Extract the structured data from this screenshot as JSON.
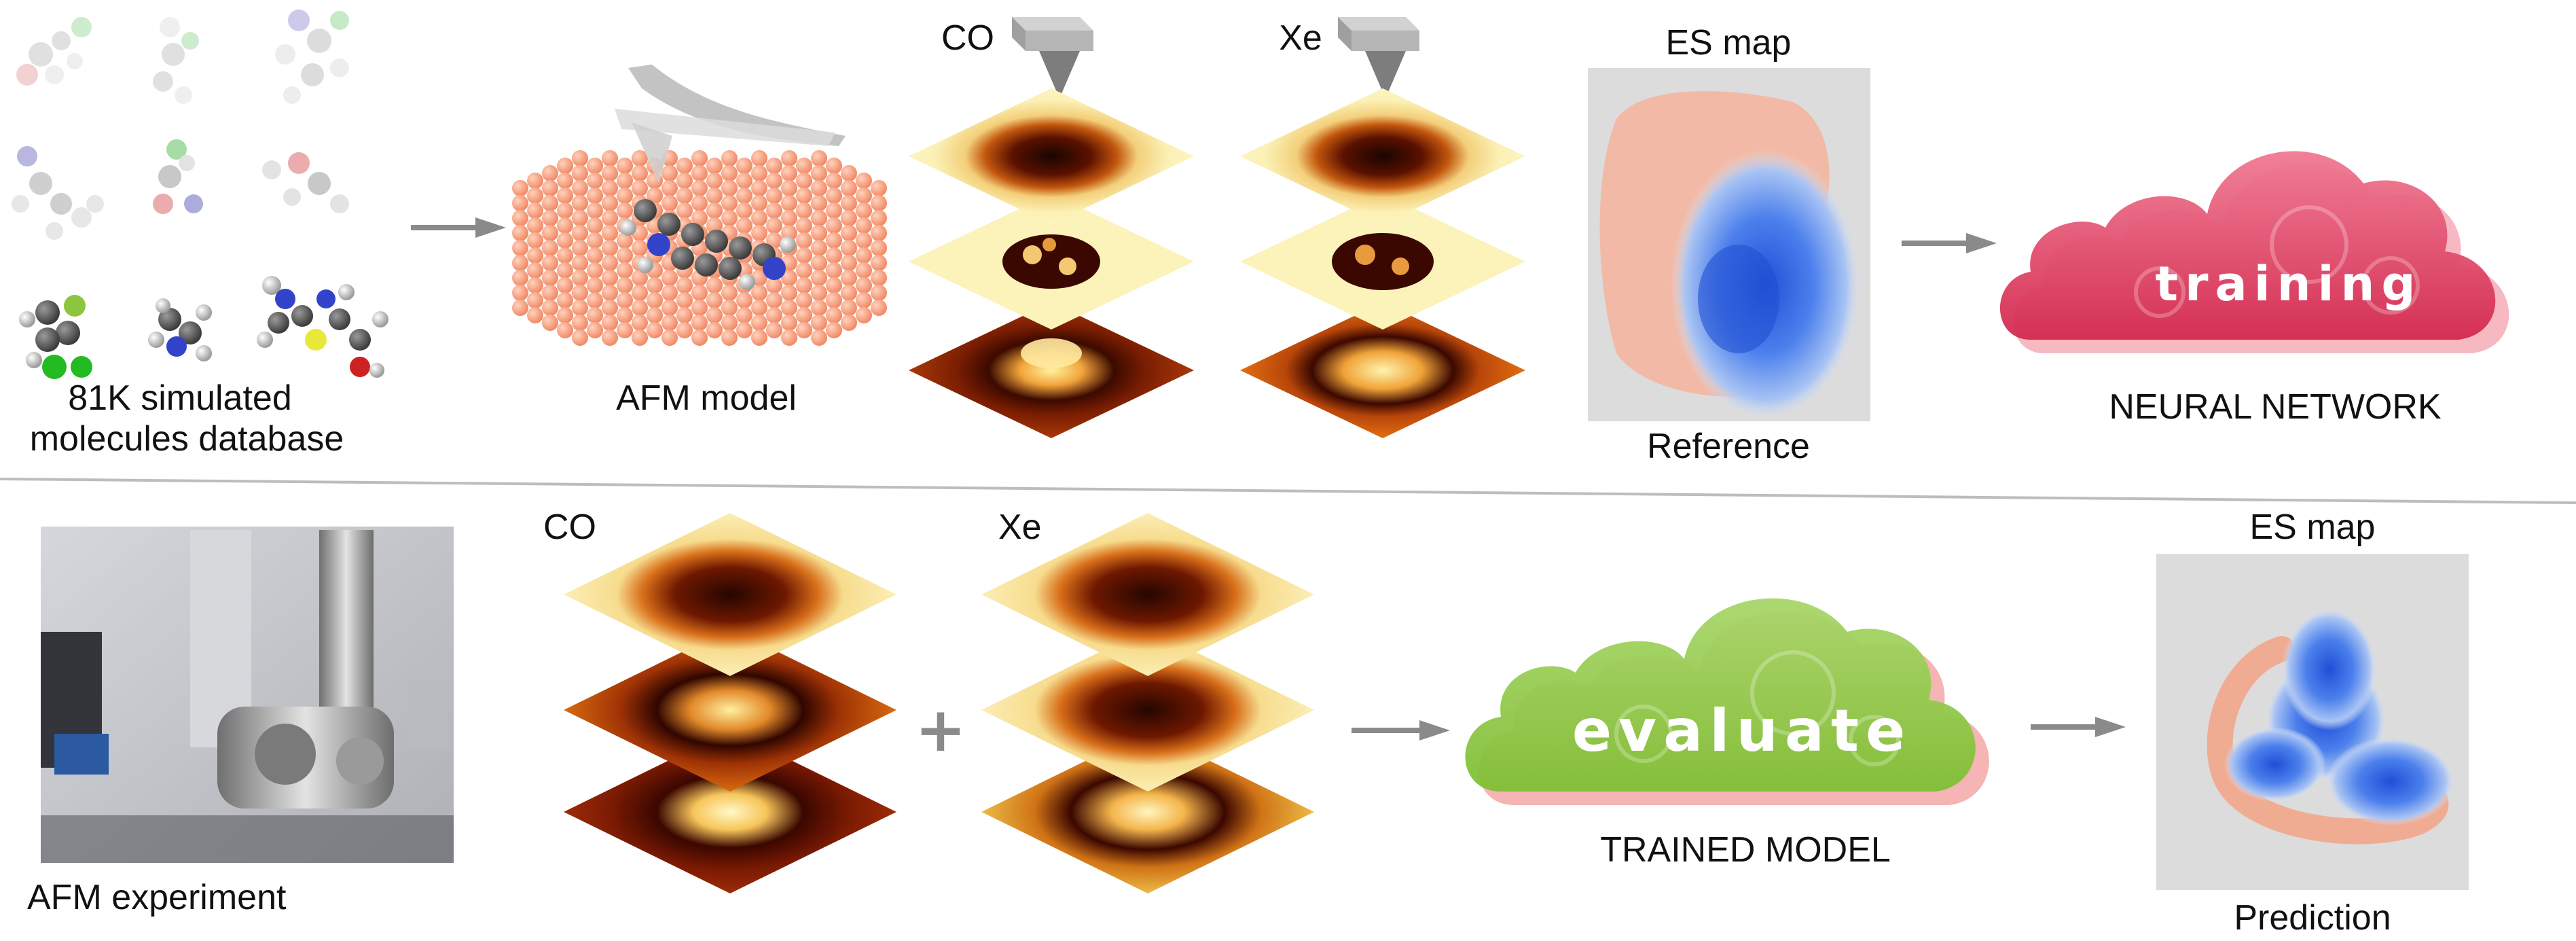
{
  "top": {
    "database_label_line1": "81K simulated",
    "database_label_line2": "molecules database",
    "afm_model_label": "AFM model",
    "tip_co_label": "CO",
    "tip_xe_label": "Xe",
    "es_map_label": "ES map",
    "reference_label": "Reference",
    "cloud_word": "training",
    "network_label": "NEURAL NETWORK"
  },
  "bottom": {
    "experiment_label": "AFM experiment",
    "co_label": "CO",
    "xe_label": "Xe",
    "plus_symbol": "+",
    "cloud_word": "evaluate",
    "model_label": "TRAINED MODEL",
    "es_map_label": "ES map",
    "prediction_label": "Prediction"
  },
  "colors": {
    "arrow": "#8a8a8a",
    "divider": "#bdbdbd",
    "training_cloud": "#d93a5a",
    "evaluate_cloud": "#8cc63f",
    "positive_potential": "#f08f70",
    "negative_potential": "#2f63e0"
  }
}
